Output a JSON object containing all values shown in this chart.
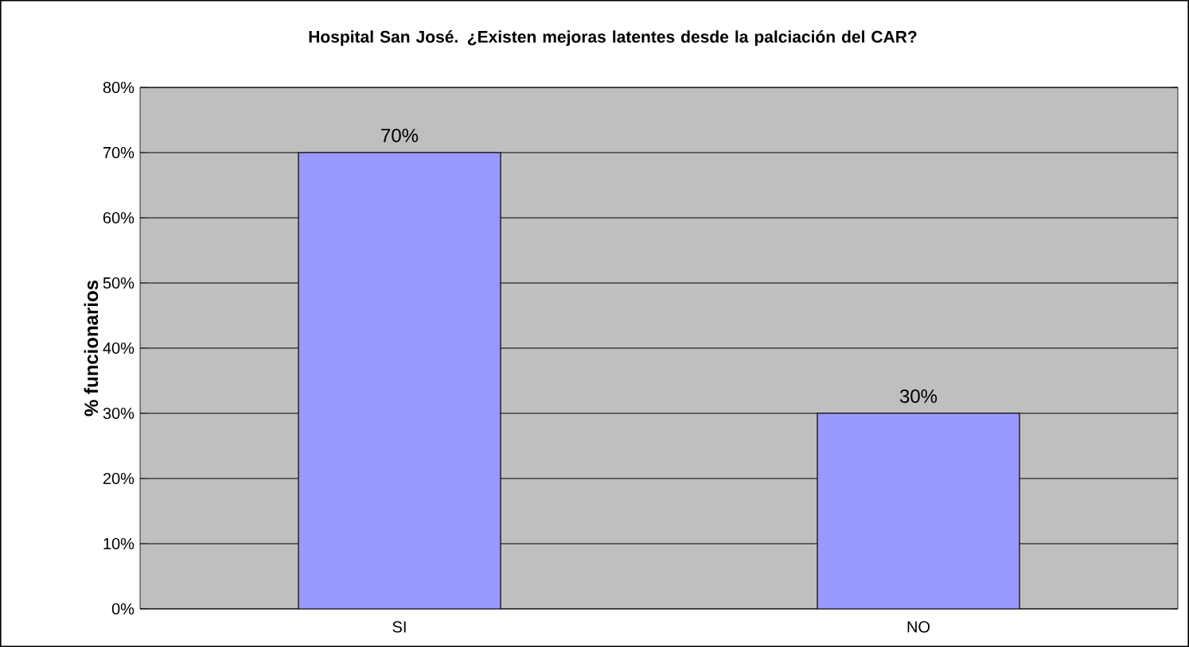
{
  "chart_data": {
    "type": "bar",
    "title": "Hospital San José. ¿Existen mejoras latentes desde la palciación del CAR?",
    "ylabel": "% funcionarios",
    "categories": [
      "SI",
      "NO"
    ],
    "values": [
      70,
      30
    ],
    "color": "#9999ff",
    "value_labels": [
      "70%",
      "30%"
    ],
    "ylim": [
      0,
      80
    ],
    "yticks": [
      {
        "value": 0,
        "label": "0%"
      },
      {
        "value": 10,
        "label": "10%"
      },
      {
        "value": 20,
        "label": "20%"
      },
      {
        "value": 30,
        "label": "30%"
      },
      {
        "value": 40,
        "label": "40%"
      },
      {
        "value": 50,
        "label": "50%"
      },
      {
        "value": 60,
        "label": "60%"
      },
      {
        "value": 70,
        "label": "70%"
      },
      {
        "value": 80,
        "label": "80%"
      }
    ],
    "grid": "y"
  }
}
